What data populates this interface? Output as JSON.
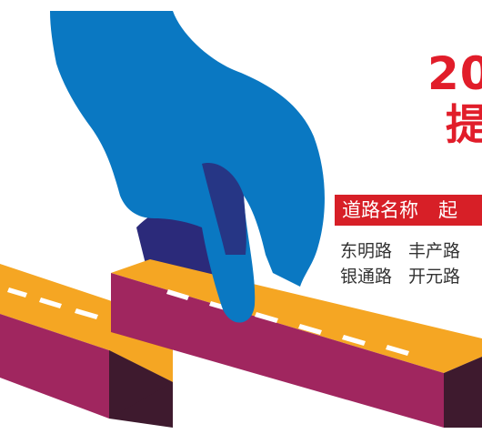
{
  "headline": {
    "line1": "20",
    "line2": "提"
  },
  "table": {
    "headers": [
      "道路名称",
      "起"
    ],
    "rows": [
      [
        "东明路",
        "丰产路"
      ],
      [
        "银通路",
        "开元路"
      ]
    ]
  },
  "colors": {
    "headline_red": "#e11d2a",
    "header_bar": "#d71f27",
    "glove_blue": "#0a78c2",
    "shadow_purple": "#2b2a7a",
    "road_orange": "#f5a623",
    "road_side_magenta": "#a0265f",
    "road_side_dark": "#3e1a2e"
  },
  "illustration": {
    "subject": "gloved-hand-joining-road-blocks"
  }
}
